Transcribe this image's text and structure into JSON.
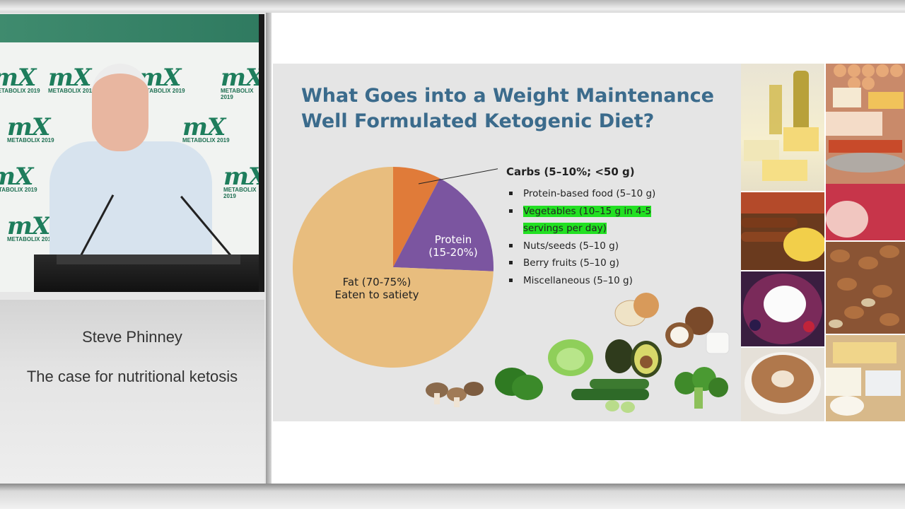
{
  "caption": {
    "speaker_name": "Steve Phinney",
    "talk_title": "The case for nutritional ketosis"
  },
  "video": {
    "logo_text": "mX",
    "logo_sub": "METABOLIX 2019"
  },
  "slide": {
    "title_line1": "What Goes into a Weight Maintenance",
    "title_line2": "Well Formulated Ketogenic Diet?",
    "carbs_heading": "Carbs (5–10%; <50 g)",
    "carb_items": [
      {
        "text": "Protein-based food (5–10 g)"
      },
      {
        "text": "Vegetables (10–15 g in 4-5 servings per day)",
        "highlight": true
      },
      {
        "text": "Nuts/seeds (5–10 g)"
      },
      {
        "text": "Berry fruits (5–10 g)"
      },
      {
        "text": "Miscellaneous (5–10 g)"
      }
    ]
  },
  "chart_data": {
    "type": "pie",
    "slices": [
      {
        "label": "Fat (70-75%)",
        "sublabel": "Eaten to satiety",
        "value": 72.5,
        "color": "#e8bd7e"
      },
      {
        "label": "Carbs",
        "value": 7.5,
        "color": "#e07b39"
      },
      {
        "label": "Protein",
        "sublabel": "(15-20%)",
        "value": 17.5,
        "color": "#7b55a0"
      }
    ]
  },
  "colors": {
    "title": "#3b6b8c",
    "highlight": "#22e022",
    "logo": "#1e7d5c"
  },
  "icons": [
    "onion-image",
    "coconut-image",
    "lettuce-image",
    "avocado-image",
    "mushroom-image",
    "spinach-image",
    "zucchini-image",
    "broccoli-image"
  ]
}
